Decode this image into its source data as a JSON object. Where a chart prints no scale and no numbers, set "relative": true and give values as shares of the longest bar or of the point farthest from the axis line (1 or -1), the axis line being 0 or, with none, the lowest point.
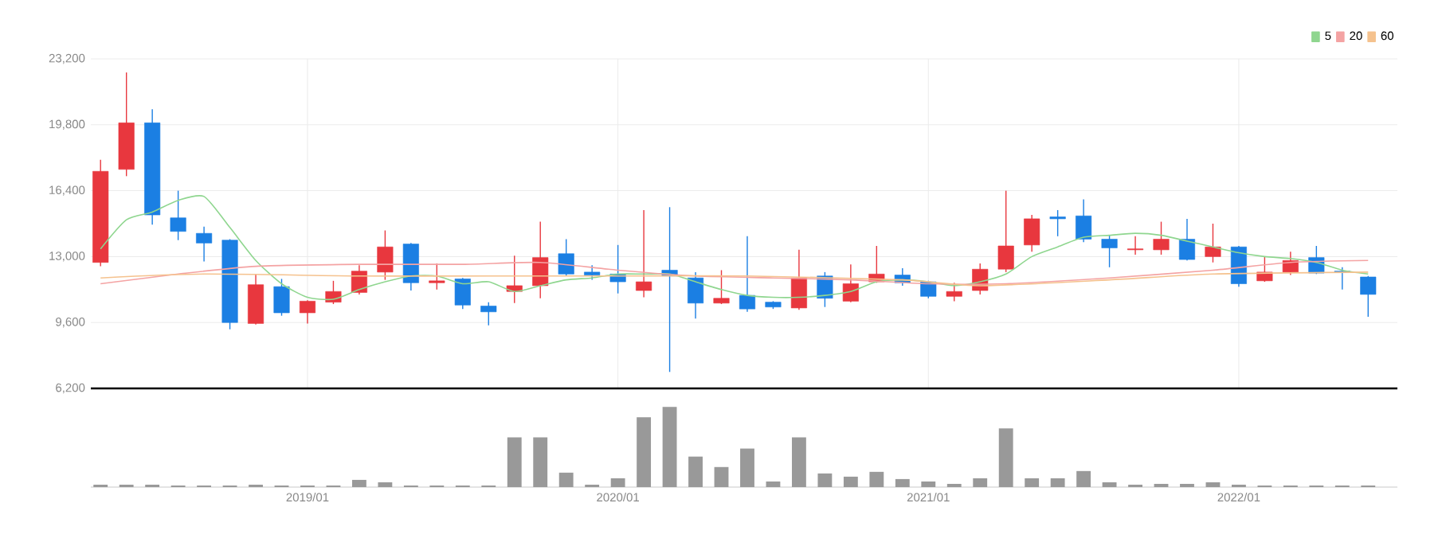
{
  "chart_data": [
    {
      "type": "candlestick",
      "x": [
        "2018-05",
        "2018-06",
        "2018-07",
        "2018-08",
        "2018-09",
        "2018-10",
        "2018-11",
        "2018-12",
        "2019-01",
        "2019-02",
        "2019-03",
        "2019-04",
        "2019-05",
        "2019-06",
        "2019-07",
        "2019-08",
        "2019-09",
        "2019-10",
        "2019-11",
        "2019-12",
        "2020-01",
        "2020-02",
        "2020-03",
        "2020-04",
        "2020-05",
        "2020-06",
        "2020-07",
        "2020-08",
        "2020-09",
        "2020-10",
        "2020-11",
        "2020-12",
        "2021-01",
        "2021-02",
        "2021-03",
        "2021-04",
        "2021-05",
        "2021-06",
        "2021-07",
        "2021-08",
        "2021-09",
        "2021-10",
        "2021-11",
        "2021-12",
        "2022-01",
        "2022-02",
        "2022-03",
        "2022-04",
        "2022-05",
        "2022-06"
      ],
      "ohlc": [
        [
          12700,
          18000,
          12500,
          17400
        ],
        [
          17500,
          22500,
          17150,
          19900
        ],
        [
          19900,
          20600,
          14650,
          15150
        ],
        [
          15000,
          16400,
          13850,
          14300
        ],
        [
          14200,
          14550,
          12750,
          13700
        ],
        [
          13850,
          13900,
          9250,
          9600
        ],
        [
          9550,
          12100,
          9500,
          11550
        ],
        [
          11450,
          11850,
          9950,
          10100
        ],
        [
          10100,
          10750,
          9550,
          10700
        ],
        [
          10650,
          11750,
          10550,
          11200
        ],
        [
          11150,
          12550,
          11050,
          12250
        ],
        [
          12200,
          14350,
          11800,
          13500
        ],
        [
          13650,
          13700,
          11250,
          11650
        ],
        [
          11650,
          12650,
          11300,
          11750
        ],
        [
          11850,
          11900,
          10300,
          10500
        ],
        [
          10450,
          10650,
          9450,
          10150
        ],
        [
          11200,
          13050,
          10600,
          11500
        ],
        [
          11500,
          14800,
          10850,
          12950
        ],
        [
          13150,
          13900,
          12000,
          12100
        ],
        [
          12200,
          12550,
          11800,
          12050
        ],
        [
          12100,
          13600,
          11100,
          11700
        ],
        [
          11250,
          15400,
          10900,
          11700
        ],
        [
          12300,
          15550,
          7050,
          12000
        ],
        [
          11900,
          12200,
          9800,
          10600
        ],
        [
          10600,
          12300,
          10550,
          10850
        ],
        [
          11000,
          14050,
          10150,
          10300
        ],
        [
          10650,
          10700,
          10300,
          10400
        ],
        [
          10350,
          13350,
          10250,
          11900
        ],
        [
          12000,
          12200,
          10400,
          10850
        ],
        [
          10700,
          12600,
          10650,
          11600
        ],
        [
          11700,
          13550,
          11650,
          12100
        ],
        [
          12050,
          12400,
          11500,
          11650
        ],
        [
          11700,
          11750,
          10850,
          10950
        ],
        [
          10950,
          11650,
          10700,
          11200
        ],
        [
          11250,
          12650,
          11050,
          12350
        ],
        [
          12350,
          16400,
          12200,
          13550
        ],
        [
          13600,
          15150,
          13250,
          14950
        ],
        [
          15050,
          15400,
          14050,
          14950
        ],
        [
          15100,
          15950,
          13750,
          13900
        ],
        [
          13900,
          14100,
          12450,
          13450
        ],
        [
          13350,
          14050,
          13100,
          13400
        ],
        [
          13350,
          14800,
          13100,
          13900
        ],
        [
          13900,
          14950,
          12800,
          12850
        ],
        [
          13000,
          14700,
          12700,
          13500
        ],
        [
          13500,
          13550,
          11450,
          11600
        ],
        [
          11750,
          13000,
          11700,
          12200
        ],
        [
          12200,
          13250,
          12050,
          12800
        ],
        [
          12950,
          13550,
          12100,
          12150
        ],
        [
          12250,
          12450,
          11300,
          12200
        ],
        [
          11950,
          12000,
          9900,
          11050
        ]
      ],
      "series": [
        {
          "name": "5",
          "type": "line",
          "color": "#8fd68f",
          "x": [
            "2018-05",
            "2018-06",
            "2018-07",
            "2018-08",
            "2018-09",
            "2018-10",
            "2018-11",
            "2018-12",
            "2019-01",
            "2019-02",
            "2019-03",
            "2019-04",
            "2019-05",
            "2019-06",
            "2019-07",
            "2019-08",
            "2019-09",
            "2019-10",
            "2019-11",
            "2019-12",
            "2020-01",
            "2020-02",
            "2020-03",
            "2020-04",
            "2020-05",
            "2020-06",
            "2020-07",
            "2020-08",
            "2020-09",
            "2020-10",
            "2020-11",
            "2020-12",
            "2021-01",
            "2021-02",
            "2021-03",
            "2021-04",
            "2021-05",
            "2021-06",
            "2021-07",
            "2021-08",
            "2021-09",
            "2021-10",
            "2021-11",
            "2021-12",
            "2022-01",
            "2022-02",
            "2022-03",
            "2022-04",
            "2022-05",
            "2022-06"
          ],
          "values": [
            13400,
            14900,
            15300,
            15900,
            16100,
            14500,
            12800,
            11600,
            10900,
            10800,
            11300,
            11700,
            12000,
            12000,
            11600,
            11700,
            11200,
            11500,
            11800,
            11900,
            12100,
            12100,
            12100,
            11700,
            11300,
            11000,
            10900,
            10900,
            11000,
            11200,
            11700,
            11800,
            11700,
            11500,
            11700,
            12100,
            13000,
            13500,
            14000,
            14100,
            14200,
            14100,
            13800,
            13500,
            13200,
            13000,
            12900,
            12700,
            12300,
            12100
          ]
        },
        {
          "name": "20",
          "type": "line",
          "color": "#f4a3a3",
          "x": [
            "2018-05",
            "2018-08",
            "2018-11",
            "2019-03",
            "2019-07",
            "2019-10",
            "2020-01",
            "2020-04",
            "2020-07",
            "2020-10",
            "2021-01",
            "2021-04",
            "2021-08",
            "2021-12",
            "2022-03",
            "2022-06"
          ],
          "values": [
            11600,
            12100,
            12500,
            12600,
            12600,
            12700,
            12300,
            12000,
            11900,
            11800,
            11600,
            11600,
            11900,
            12300,
            12700,
            12800
          ]
        },
        {
          "name": "60",
          "type": "line",
          "color": "#f5c28e",
          "x": [
            "2018-05",
            "2018-09",
            "2019-03",
            "2019-08",
            "2020-01",
            "2020-06",
            "2020-12",
            "2021-03",
            "2021-08",
            "2021-12",
            "2022-06"
          ],
          "values": [
            11900,
            12100,
            12000,
            12000,
            12000,
            12000,
            11800,
            11500,
            11800,
            12100,
            12200
          ]
        }
      ],
      "xlim": [
        "2018-04-20",
        "2022-07-05"
      ],
      "xticks": [
        {
          "value": "2019-01",
          "label": null
        },
        {
          "value": "2020-01",
          "label": null
        },
        {
          "value": "2021-01",
          "label": null
        },
        {
          "value": "2022-01",
          "label": null
        }
      ],
      "ylim": [
        6200,
        23200
      ],
      "yticks": [
        {
          "value": 6200,
          "label": "6,200"
        },
        {
          "value": 9600,
          "label": "9,600"
        },
        {
          "value": 13000,
          "label": "13,000"
        },
        {
          "value": 16400,
          "label": "16,400"
        },
        {
          "value": 19800,
          "label": "19,800"
        },
        {
          "value": 23200,
          "label": "23,200"
        }
      ],
      "grid": true,
      "legend": "top right",
      "tick_labels": "y"
    },
    {
      "type": "bar",
      "relative": true,
      "color": "#999999",
      "x": [
        "2018-05",
        "2018-06",
        "2018-07",
        "2018-08",
        "2018-09",
        "2018-10",
        "2018-11",
        "2018-12",
        "2019-01",
        "2019-02",
        "2019-03",
        "2019-04",
        "2019-05",
        "2019-06",
        "2019-07",
        "2019-08",
        "2019-09",
        "2019-10",
        "2019-11",
        "2019-12",
        "2020-01",
        "2020-02",
        "2020-03",
        "2020-04",
        "2020-05",
        "2020-06",
        "2020-07",
        "2020-08",
        "2020-09",
        "2020-10",
        "2020-11",
        "2020-12",
        "2021-01",
        "2021-02",
        "2021-03",
        "2021-04",
        "2021-05",
        "2021-06",
        "2021-07",
        "2021-08",
        "2021-09",
        "2021-10",
        "2021-11",
        "2021-12",
        "2022-01",
        "2022-02",
        "2022-03",
        "2022-04",
        "2022-05",
        "2022-06"
      ],
      "values": [
        0.03,
        0.03,
        0.03,
        0.02,
        0.02,
        0.02,
        0.03,
        0.02,
        0.02,
        0.02,
        0.09,
        0.06,
        0.02,
        0.02,
        0.02,
        0.02,
        0.62,
        0.62,
        0.18,
        0.03,
        0.11,
        0.87,
        1,
        0.38,
        0.25,
        0.48,
        0.07,
        0.62,
        0.17,
        0.13,
        0.19,
        0.1,
        0.07,
        0.04,
        0.11,
        0.73,
        0.11,
        0.11,
        0.2,
        0.06,
        0.03,
        0.04,
        0.04,
        0.06,
        0.03,
        0.02,
        0.02,
        0.02,
        0.02,
        0.02
      ],
      "xlim": [
        "2018-04-20",
        "2022-07-05"
      ],
      "xticks": [
        {
          "value": "2019-01",
          "label": "2019/01"
        },
        {
          "value": "2020-01",
          "label": "2020/01"
        },
        {
          "value": "2021-01",
          "label": "2021/01"
        },
        {
          "value": "2022-01",
          "label": "2022/01"
        }
      ],
      "tick_labels": "x"
    }
  ]
}
